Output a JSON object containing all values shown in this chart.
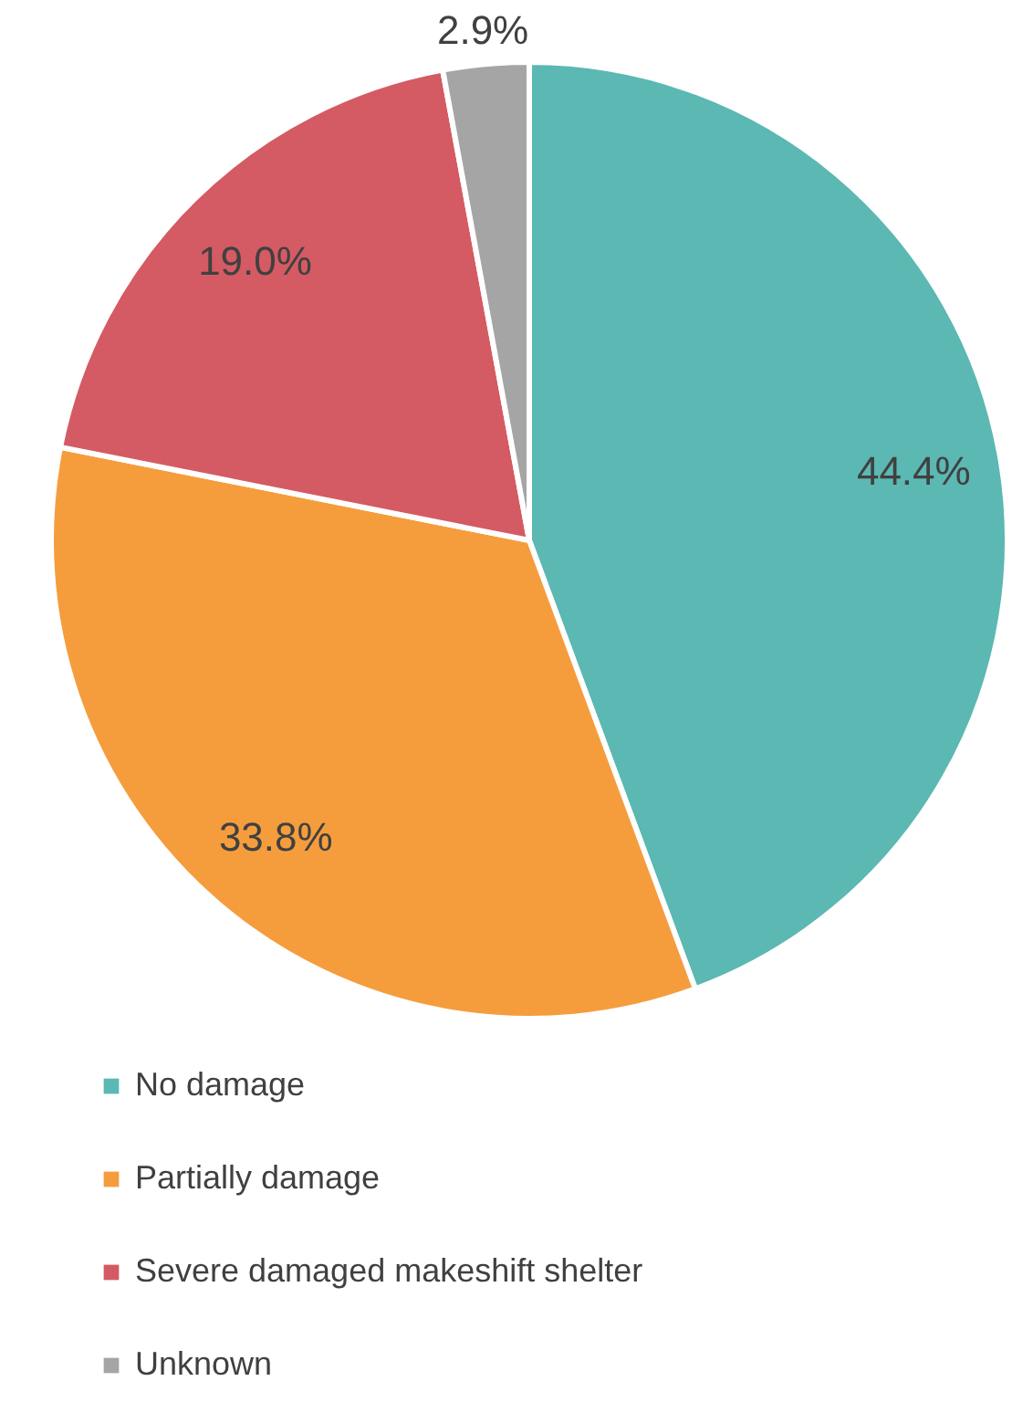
{
  "chart_data": {
    "type": "pie",
    "categories": [
      "No damage",
      "Partially damage",
      "Severe damaged makeshift shelter",
      "Unknown"
    ],
    "values": [
      44.4,
      33.8,
      19.0,
      2.9
    ],
    "colors": [
      "#5bb8b3",
      "#f59d3d",
      "#d45b63",
      "#a5a5a5"
    ],
    "value_labels": [
      "44.4%",
      "33.8%",
      "19.0%",
      "2.9%"
    ],
    "legend": "bottom"
  }
}
